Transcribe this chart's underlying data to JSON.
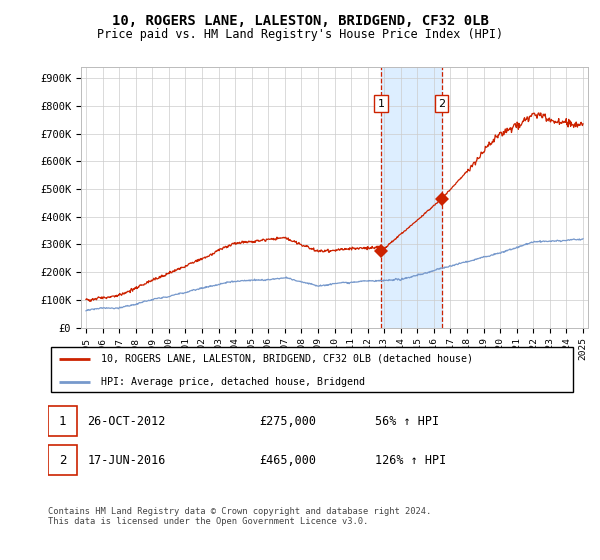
{
  "title": "10, ROGERS LANE, LALESTON, BRIDGEND, CF32 0LB",
  "subtitle": "Price paid vs. HM Land Registry's House Price Index (HPI)",
  "yticks": [
    0,
    100000,
    200000,
    300000,
    400000,
    500000,
    600000,
    700000,
    800000,
    900000
  ],
  "ytick_labels": [
    "£0",
    "£100K",
    "£200K",
    "£300K",
    "£400K",
    "£500K",
    "£600K",
    "£700K",
    "£800K",
    "£900K"
  ],
  "ylim": [
    0,
    940000
  ],
  "xlim_start": 1994.7,
  "xlim_end": 2025.3,
  "background_color": "#ffffff",
  "grid_color": "#cccccc",
  "sale1_date": 2012.82,
  "sale1_price": 275000,
  "sale2_date": 2016.46,
  "sale2_price": 465000,
  "shade_color": "#ddeeff",
  "red_line_color": "#cc2200",
  "blue_line_color": "#7799cc",
  "dashed_color": "#cc2200",
  "legend_label_red": "10, ROGERS LANE, LALESTON, BRIDGEND, CF32 0LB (detached house)",
  "legend_label_blue": "HPI: Average price, detached house, Bridgend",
  "footer": "Contains HM Land Registry data © Crown copyright and database right 2024.\nThis data is licensed under the Open Government Licence v3.0."
}
